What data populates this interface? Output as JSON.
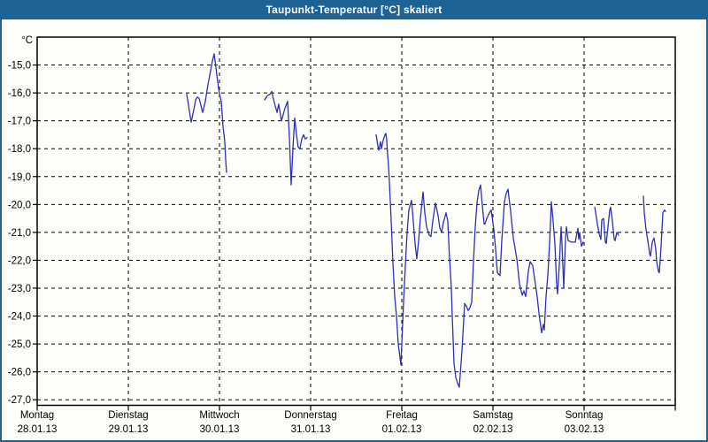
{
  "window": {
    "title": "Taupunkt-Temperatur [°C] skaliert"
  },
  "colors": {
    "titlebar_bg": "#1f6294",
    "titlebar_text": "#ffffff",
    "page_border": "#1f6294",
    "plot_bg": "#fdfdfa",
    "grid": "#000000",
    "frame": "#000000",
    "line": "#2f2fb8",
    "label": "#000000"
  },
  "chart_data": {
    "type": "line",
    "title": "Taupunkt-Temperatur [°C] skaliert",
    "unit_label": "°C",
    "grid": "dashed",
    "legend": "none",
    "y_axis": {
      "top_value": -14.0,
      "bottom_value": -27.2,
      "ticks": [
        {
          "value": -15,
          "label": "-15,0"
        },
        {
          "value": -16,
          "label": "-16,0"
        },
        {
          "value": -17,
          "label": "-17,0"
        },
        {
          "value": -18,
          "label": "-18,0"
        },
        {
          "value": -19,
          "label": "-19,0"
        },
        {
          "value": -20,
          "label": "-20,0"
        },
        {
          "value": -21,
          "label": "-21,0"
        },
        {
          "value": -22,
          "label": "-22,0"
        },
        {
          "value": -23,
          "label": "-23,0"
        },
        {
          "value": -24,
          "label": "-24,0"
        },
        {
          "value": -25,
          "label": "-25,0"
        },
        {
          "value": -26,
          "label": "-26,0"
        },
        {
          "value": -27,
          "label": "-27,0"
        }
      ]
    },
    "x_axis": {
      "range_days": [
        0,
        7
      ],
      "day_labels": [
        {
          "day": 0,
          "weekday": "Montag",
          "date": "28.01.13"
        },
        {
          "day": 1,
          "weekday": "Dienstag",
          "date": "29.01.13"
        },
        {
          "day": 2,
          "weekday": "Mittwoch",
          "date": "30.01.13"
        },
        {
          "day": 3,
          "weekday": "Donnerstag",
          "date": "31.01.13"
        },
        {
          "day": 4,
          "weekday": "Freitag",
          "date": "01.02.13"
        },
        {
          "day": 5,
          "weekday": "Samstag",
          "date": "02.02.13"
        },
        {
          "day": 6,
          "weekday": "Sonntag",
          "date": "03.02.13"
        }
      ]
    },
    "series": [
      {
        "name": "Taupunkt-Temperatur",
        "color": "#2f2fb8",
        "x_unit": "days_since_2013-01-28",
        "y_unit": "°C",
        "segments": [
          [
            [
              1.641,
              -16.05
            ],
            [
              1.66,
              -16.45
            ],
            [
              1.689,
              -17.05
            ],
            [
              1.718,
              -16.6
            ],
            [
              1.738,
              -16.25
            ],
            [
              1.757,
              -16.15
            ],
            [
              1.777,
              -16.2
            ],
            [
              1.796,
              -16.45
            ],
            [
              1.816,
              -16.7
            ],
            [
              1.845,
              -16.3
            ],
            [
              1.874,
              -15.7
            ],
            [
              1.903,
              -15.2
            ],
            [
              1.922,
              -14.85
            ],
            [
              1.942,
              -14.6
            ],
            [
              1.961,
              -15.1
            ],
            [
              1.981,
              -15.6
            ],
            [
              2.0,
              -16.05
            ],
            [
              2.019,
              -16.3
            ],
            [
              2.039,
              -17.2
            ],
            [
              2.058,
              -17.75
            ],
            [
              2.068,
              -18.4
            ],
            [
              2.078,
              -18.85
            ]
          ],
          [
            [
              2.495,
              -16.25
            ],
            [
              2.524,
              -16.1
            ],
            [
              2.553,
              -16.05
            ],
            [
              2.573,
              -15.95
            ],
            [
              2.602,
              -16.35
            ],
            [
              2.631,
              -16.7
            ],
            [
              2.65,
              -16.4
            ],
            [
              2.68,
              -17.0
            ],
            [
              2.718,
              -16.55
            ],
            [
              2.748,
              -16.3
            ],
            [
              2.767,
              -17.6
            ],
            [
              2.786,
              -19.3
            ],
            [
              2.806,
              -18.0
            ],
            [
              2.825,
              -16.9
            ],
            [
              2.845,
              -17.5
            ],
            [
              2.864,
              -17.95
            ],
            [
              2.883,
              -18.0
            ],
            [
              2.903,
              -17.65
            ],
            [
              2.922,
              -17.5
            ],
            [
              2.941,
              -17.65
            ],
            [
              2.961,
              -17.6
            ]
          ],
          [
            [
              3.718,
              -17.5
            ],
            [
              3.738,
              -17.9
            ],
            [
              3.748,
              -18.05
            ],
            [
              3.767,
              -17.75
            ],
            [
              3.777,
              -18.0
            ],
            [
              3.796,
              -17.7
            ],
            [
              3.816,
              -17.5
            ],
            [
              3.825,
              -17.45
            ],
            [
              3.835,
              -17.7
            ],
            [
              3.845,
              -18.2
            ],
            [
              3.854,
              -18.6
            ],
            [
              3.864,
              -19.2
            ],
            [
              3.883,
              -20.5
            ],
            [
              3.903,
              -22.1
            ],
            [
              3.922,
              -23.3
            ],
            [
              3.942,
              -24.0
            ],
            [
              3.961,
              -25.0
            ],
            [
              3.981,
              -25.5
            ],
            [
              3.99,
              -25.75
            ],
            [
              4.0,
              -25.0
            ],
            [
              4.019,
              -23.5
            ],
            [
              4.039,
              -22.2
            ],
            [
              4.058,
              -21.0
            ],
            [
              4.078,
              -20.2
            ],
            [
              4.107,
              -19.85
            ],
            [
              4.126,
              -20.6
            ],
            [
              4.146,
              -21.4
            ],
            [
              4.165,
              -21.95
            ],
            [
              4.184,
              -21.3
            ],
            [
              4.204,
              -20.5
            ],
            [
              4.233,
              -19.55
            ],
            [
              4.252,
              -20.3
            ],
            [
              4.272,
              -20.8
            ],
            [
              4.301,
              -21.1
            ],
            [
              4.32,
              -21.15
            ],
            [
              4.34,
              -20.6
            ],
            [
              4.369,
              -19.95
            ],
            [
              4.398,
              -20.4
            ],
            [
              4.417,
              -20.85
            ],
            [
              4.437,
              -21.0
            ],
            [
              4.456,
              -20.65
            ],
            [
              4.485,
              -20.3
            ],
            [
              4.505,
              -20.6
            ],
            [
              4.524,
              -21.95
            ],
            [
              4.544,
              -23.0
            ],
            [
              4.553,
              -24.0
            ],
            [
              4.573,
              -25.7
            ],
            [
              4.592,
              -26.2
            ],
            [
              4.612,
              -26.4
            ],
            [
              4.631,
              -26.55
            ],
            [
              4.641,
              -26.1
            ],
            [
              4.66,
              -25.25
            ],
            [
              4.689,
              -23.55
            ],
            [
              4.709,
              -23.65
            ],
            [
              4.728,
              -23.8
            ],
            [
              4.748,
              -23.7
            ],
            [
              4.767,
              -23.5
            ],
            [
              4.786,
              -22.05
            ],
            [
              4.806,
              -20.8
            ],
            [
              4.825,
              -19.95
            ],
            [
              4.845,
              -19.5
            ],
            [
              4.864,
              -19.3
            ],
            [
              4.883,
              -20.0
            ],
            [
              4.903,
              -20.7
            ],
            [
              4.913,
              -20.7
            ],
            [
              4.932,
              -20.5
            ],
            [
              4.961,
              -20.3
            ],
            [
              4.981,
              -20.2
            ],
            [
              5.01,
              -20.9
            ],
            [
              5.029,
              -21.6
            ],
            [
              5.049,
              -22.45
            ],
            [
              5.078,
              -22.55
            ],
            [
              5.097,
              -21.3
            ],
            [
              5.126,
              -19.9
            ],
            [
              5.146,
              -19.6
            ],
            [
              5.165,
              -19.45
            ],
            [
              5.194,
              -20.25
            ],
            [
              5.223,
              -21.2
            ],
            [
              5.262,
              -21.95
            ],
            [
              5.291,
              -22.85
            ],
            [
              5.32,
              -23.25
            ],
            [
              5.34,
              -23.1
            ],
            [
              5.359,
              -23.3
            ],
            [
              5.388,
              -22.4
            ],
            [
              5.408,
              -22.05
            ],
            [
              5.437,
              -22.2
            ],
            [
              5.456,
              -22.65
            ],
            [
              5.485,
              -23.3
            ],
            [
              5.505,
              -23.9
            ],
            [
              5.534,
              -24.6
            ],
            [
              5.553,
              -24.3
            ],
            [
              5.563,
              -24.5
            ],
            [
              5.583,
              -23.3
            ],
            [
              5.602,
              -22.55
            ],
            [
              5.621,
              -21.4
            ],
            [
              5.641,
              -19.9
            ],
            [
              5.66,
              -20.6
            ],
            [
              5.68,
              -21.4
            ],
            [
              5.699,
              -22.9
            ],
            [
              5.709,
              -23.2
            ],
            [
              5.728,
              -22.15
            ],
            [
              5.748,
              -20.8
            ],
            [
              5.757,
              -21.4
            ],
            [
              5.777,
              -23.0
            ],
            [
              5.796,
              -21.2
            ],
            [
              5.806,
              -20.8
            ],
            [
              5.825,
              -21.3
            ],
            [
              5.864,
              -21.35
            ],
            [
              5.903,
              -21.35
            ],
            [
              5.932,
              -20.85
            ],
            [
              5.942,
              -21.25
            ],
            [
              5.951,
              -21.0
            ],
            [
              5.971,
              -21.5
            ],
            [
              5.99,
              -21.35
            ]
          ],
          [
            [
              6.117,
              -20.1
            ],
            [
              6.146,
              -20.7
            ],
            [
              6.165,
              -21.05
            ],
            [
              6.184,
              -21.25
            ],
            [
              6.194,
              -20.55
            ],
            [
              6.214,
              -20.5
            ],
            [
              6.233,
              -21.35
            ],
            [
              6.243,
              -21.4
            ],
            [
              6.262,
              -20.8
            ],
            [
              6.282,
              -20.2
            ],
            [
              6.291,
              -20.1
            ],
            [
              6.311,
              -20.6
            ],
            [
              6.33,
              -21.25
            ],
            [
              6.34,
              -21.3
            ],
            [
              6.359,
              -21.0
            ],
            [
              6.379,
              -21.1
            ]
          ],
          [
            [
              6.65,
              -19.7
            ],
            [
              6.66,
              -20.3
            ],
            [
              6.68,
              -20.9
            ],
            [
              6.699,
              -21.3
            ],
            [
              6.718,
              -21.75
            ],
            [
              6.728,
              -21.85
            ],
            [
              6.748,
              -21.35
            ],
            [
              6.767,
              -21.2
            ],
            [
              6.786,
              -21.6
            ],
            [
              6.796,
              -22.05
            ],
            [
              6.816,
              -22.4
            ],
            [
              6.825,
              -22.45
            ],
            [
              6.845,
              -21.5
            ],
            [
              6.864,
              -20.3
            ],
            [
              6.883,
              -20.2
            ],
            [
              6.893,
              -20.25
            ]
          ]
        ]
      }
    ]
  }
}
